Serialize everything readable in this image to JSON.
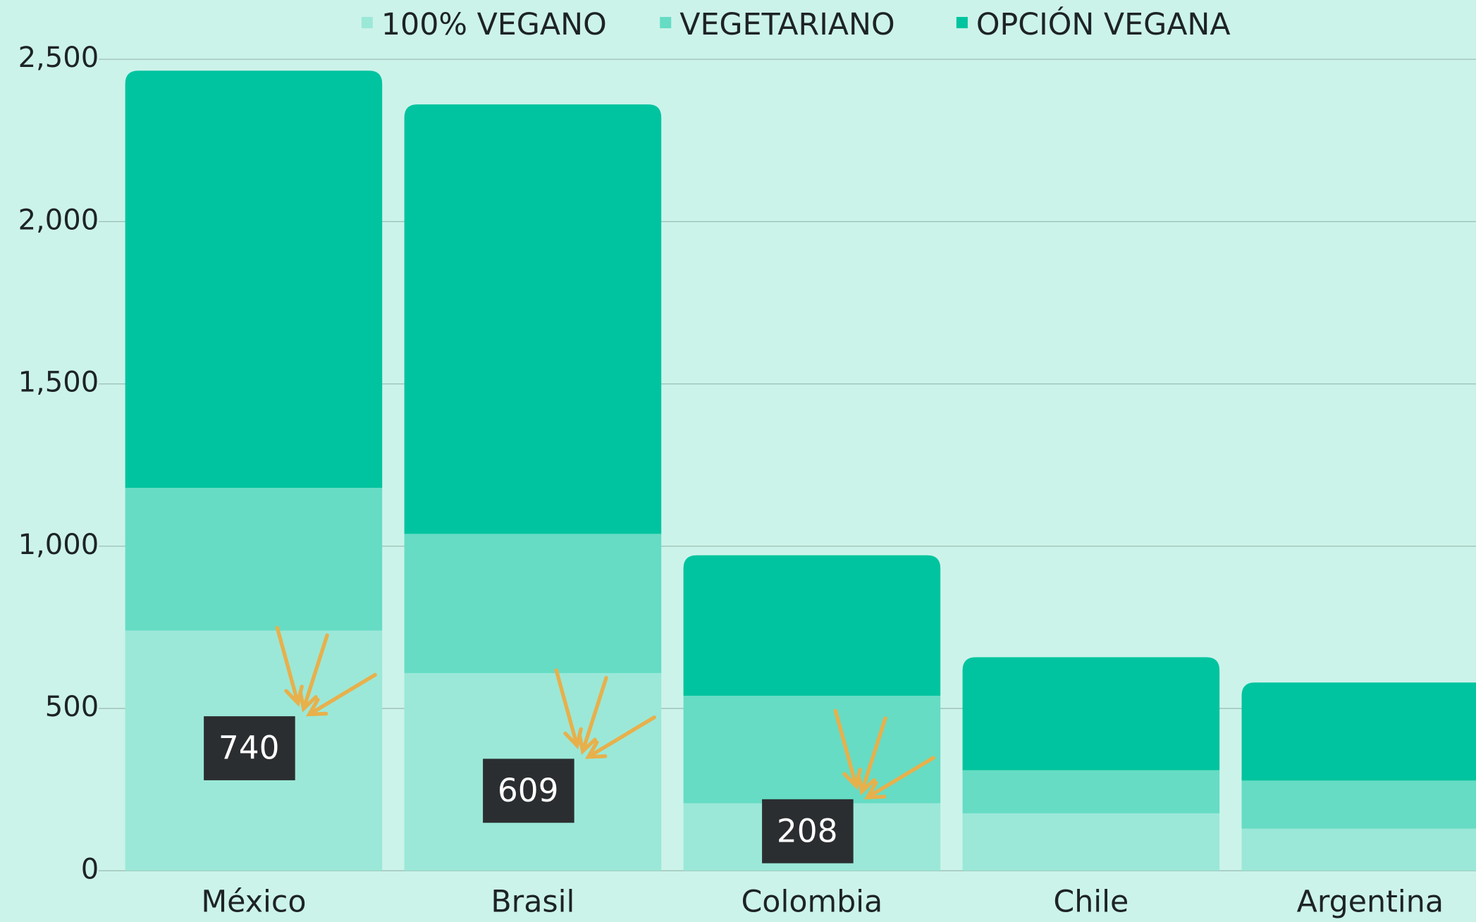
{
  "chart_data": {
    "type": "stacked_bar",
    "categories": [
      "México",
      "Brasil",
      "Colombia",
      "Chile",
      "Argentina"
    ],
    "series": [
      {
        "name": "100% VEGANO",
        "color": "#9be8d8",
        "values": [
          740,
          609,
          208,
          177,
          130
        ],
        "data_labels": [
          true,
          true,
          true,
          false,
          false
        ]
      },
      {
        "name": "VEGETARIANO",
        "color": "#66dcc4",
        "values": [
          440,
          429,
          331,
          133,
          148
        ]
      },
      {
        "name": "OPCIÓN VEGANA",
        "color": "#00c49f",
        "values": [
          1285,
          1323,
          433,
          348,
          302
        ]
      }
    ],
    "ylim": [
      0,
      2500
    ],
    "yticks": [
      0,
      {
        "value": 500,
        "label": "500"
      },
      {
        "value": 1000,
        "label": "1,000"
      },
      {
        "value": 1500,
        "label": "1,500"
      },
      {
        "value": 2000,
        "label": "2,000"
      },
      {
        "value": 2500,
        "label": "2,500"
      }
    ],
    "grid": true,
    "legend": "top"
  }
}
